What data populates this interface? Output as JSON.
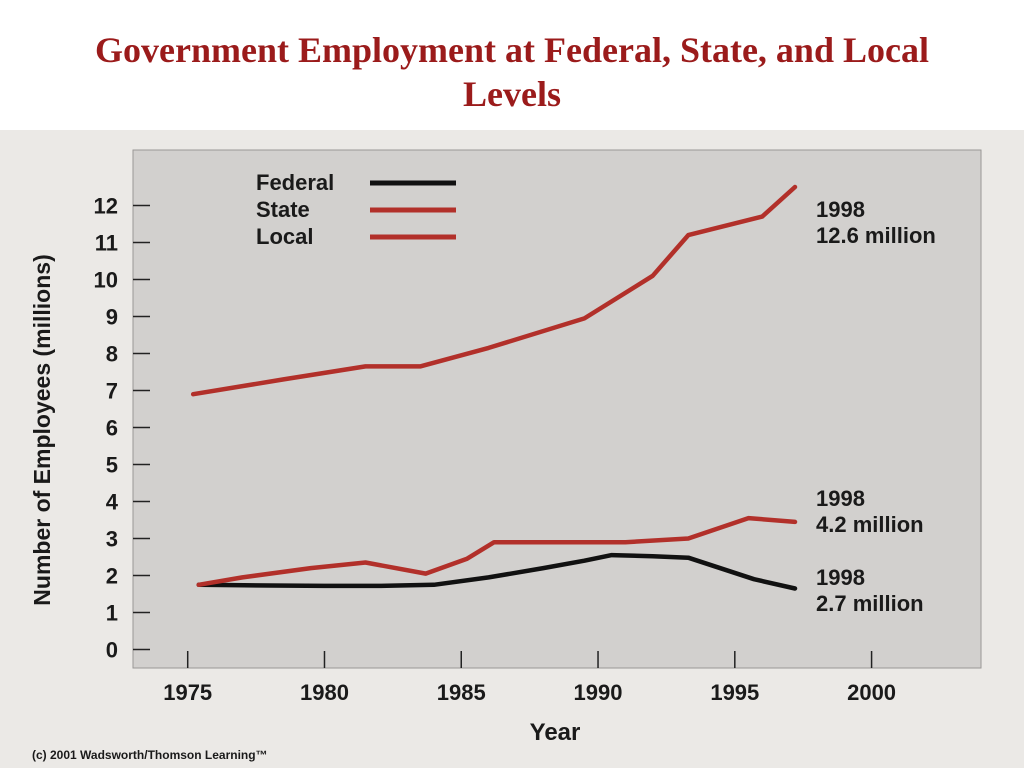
{
  "slide": {
    "title_line1": "Government Employment at Federal, State, and Local",
    "title_line2": "Levels"
  },
  "colors": {
    "title": "#9b1b1b",
    "federal": "#111111",
    "state": "#b2302a",
    "local": "#b2302a",
    "plot_bg": "#d2d0ce"
  },
  "chart_data": {
    "type": "line",
    "xlabel": "Year",
    "ylabel": "Number of Employees (millions)",
    "xlim": [
      1973,
      2004
    ],
    "ylim": [
      -0.5,
      13.5
    ],
    "x_ticks": [
      1975,
      1980,
      1985,
      1990,
      1995,
      2000
    ],
    "y_ticks": [
      0,
      1,
      2,
      3,
      4,
      5,
      6,
      7,
      8,
      9,
      10,
      11,
      12
    ],
    "legend_position": "top",
    "series": [
      {
        "name": "Federal",
        "points": [
          [
            1975.4,
            1.75
          ],
          [
            1978,
            1.73
          ],
          [
            1980,
            1.72
          ],
          [
            1982,
            1.72
          ],
          [
            1984,
            1.75
          ],
          [
            1986,
            1.95
          ],
          [
            1988,
            2.2
          ],
          [
            1989.5,
            2.4
          ],
          [
            1990.5,
            2.55
          ],
          [
            1992,
            2.52
          ],
          [
            1993.3,
            2.48
          ],
          [
            1995.7,
            1.9
          ],
          [
            1997.2,
            1.65
          ]
        ],
        "annotation": {
          "year": "1998",
          "value": "2.7 million"
        }
      },
      {
        "name": "State",
        "points": [
          [
            1975.4,
            1.75
          ],
          [
            1977,
            1.95
          ],
          [
            1979.5,
            2.2
          ],
          [
            1981.5,
            2.35
          ],
          [
            1983.7,
            2.05
          ],
          [
            1985.2,
            2.45
          ],
          [
            1986.2,
            2.9
          ],
          [
            1989,
            2.9
          ],
          [
            1991,
            2.9
          ],
          [
            1993.3,
            3.0
          ],
          [
            1995.5,
            3.55
          ],
          [
            1997.2,
            3.45
          ]
        ],
        "annotation": {
          "year": "1998",
          "value": "4.2 million"
        }
      },
      {
        "name": "Local",
        "points": [
          [
            1975.2,
            6.9
          ],
          [
            1978.5,
            7.3
          ],
          [
            1981.5,
            7.65
          ],
          [
            1983.5,
            7.65
          ],
          [
            1986,
            8.15
          ],
          [
            1989.5,
            8.95
          ],
          [
            1992,
            10.1
          ],
          [
            1993.3,
            11.2
          ],
          [
            1996,
            11.7
          ],
          [
            1997.2,
            12.5
          ]
        ],
        "annotation": {
          "year": "1998",
          "value": "12.6 million"
        }
      }
    ],
    "credit": "(c) 2001 Wadsworth/Thomson Learning™"
  }
}
